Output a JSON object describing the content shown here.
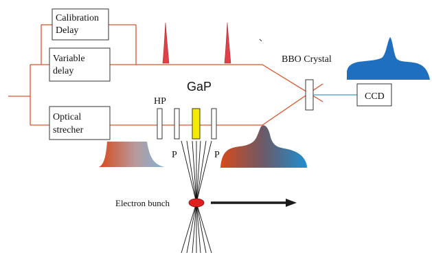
{
  "labels": {
    "calibration_delay_line1": "Calibration",
    "calibration_delay_line2": "Delay",
    "variable_delay_line1": "Variable",
    "variable_delay_line2": "delay",
    "optical_stretcher_line1": "Optical",
    "optical_stretcher_line2": "strecher",
    "ccd": "CCD",
    "bbo_crystal": "BBO Crystal",
    "gap": "GaP",
    "hp": "HP",
    "p_left": "P",
    "p_right": "P",
    "electron_bunch": "Electron bunch"
  },
  "colors": {
    "beam_line": "#d9542a",
    "pulse_red": "#e0404a",
    "ccd_line": "#3a9bc8",
    "blue_signal": "#1f6fc0",
    "gap_crystal": "#f4ea00",
    "electron": "#e02020",
    "arrow": "#1a1a1a",
    "stretched_start": "#d64a1c",
    "stretched_end": "#2a8fd0"
  }
}
